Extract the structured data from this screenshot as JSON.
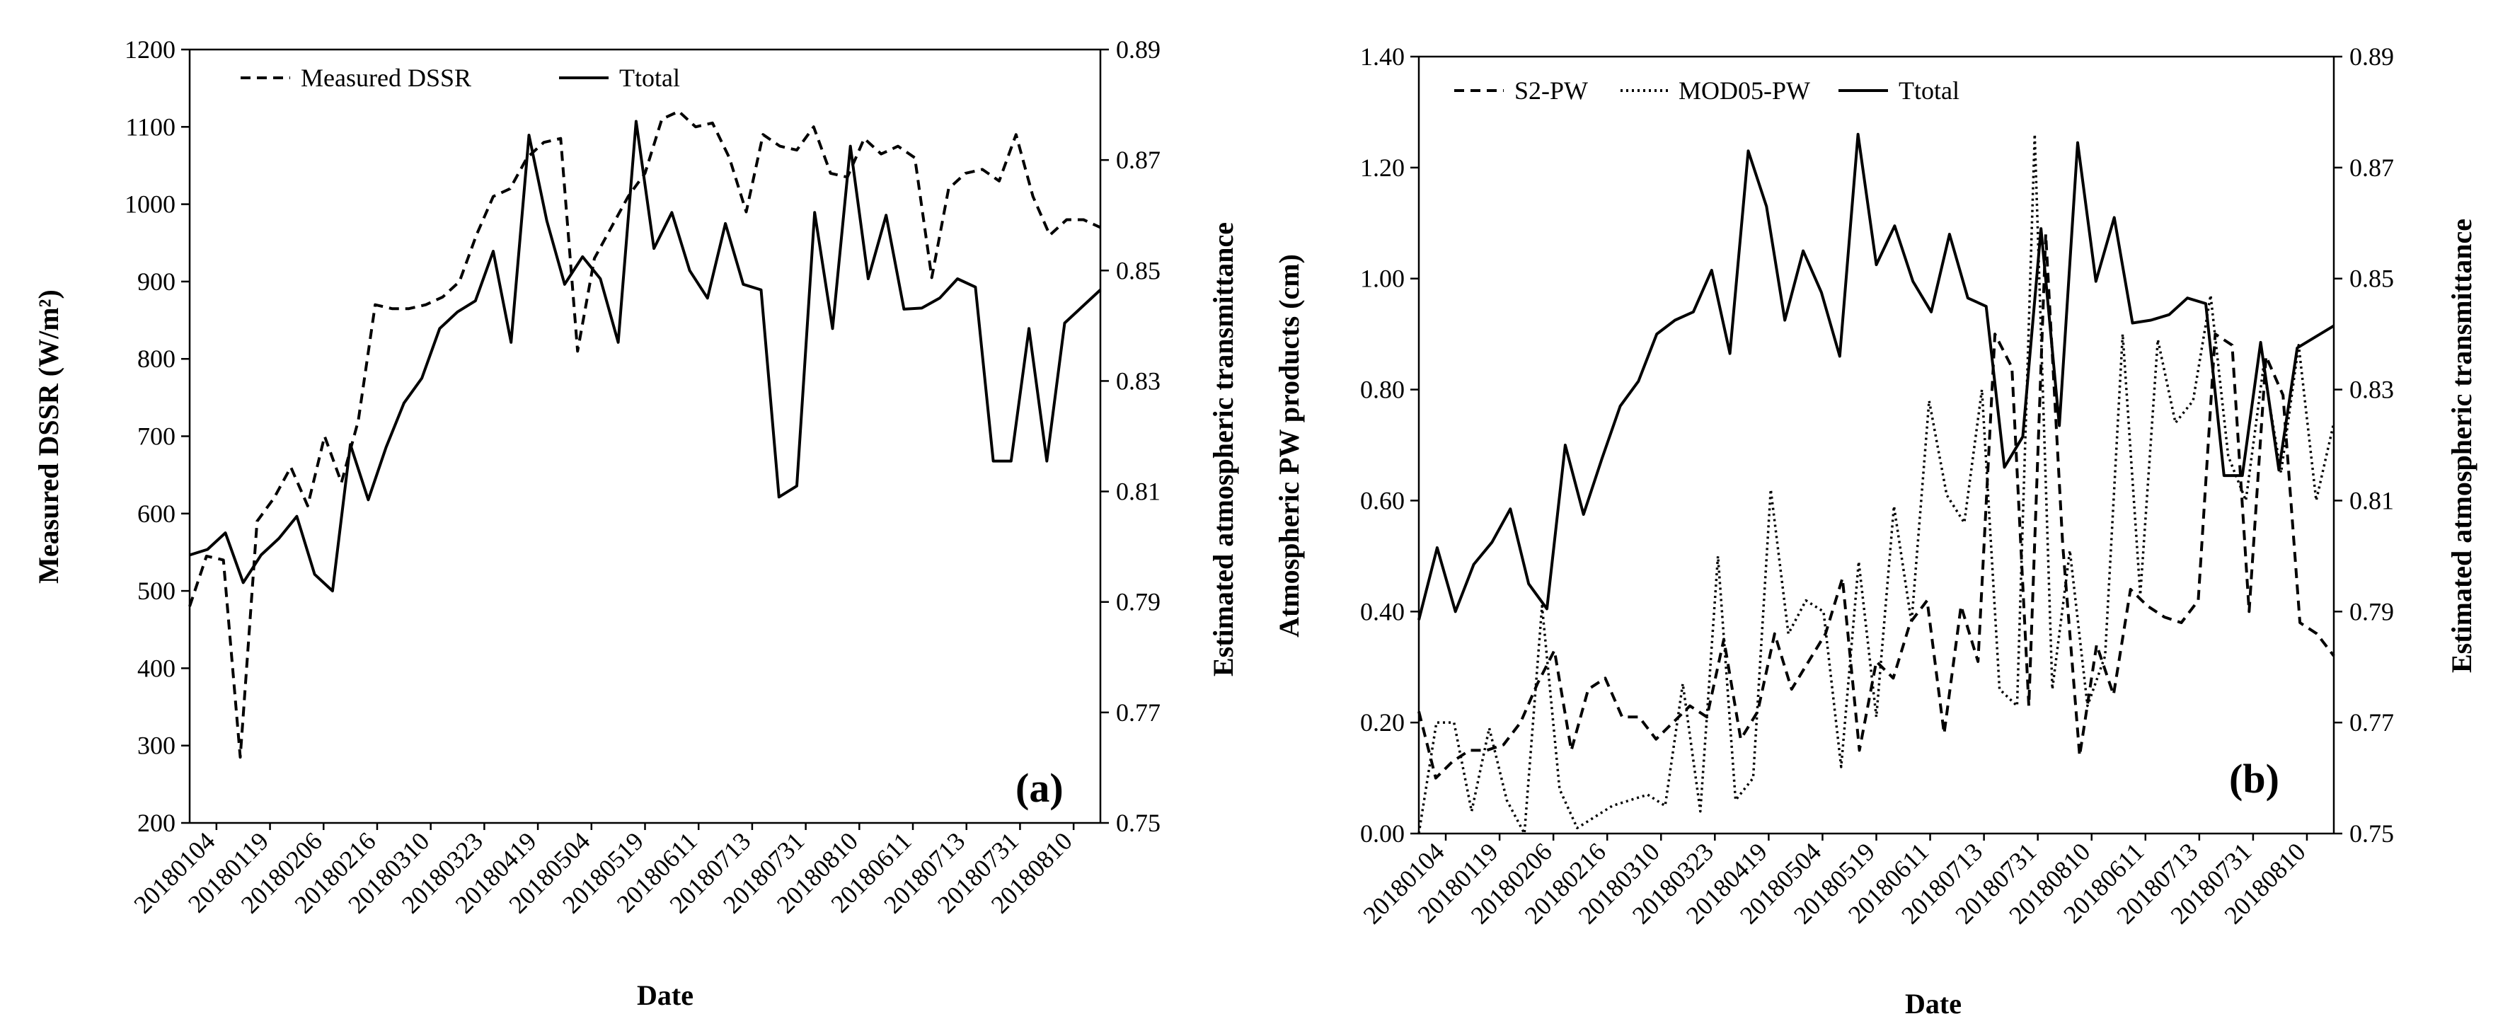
{
  "chart_data": [
    {
      "type": "line",
      "panel_label": "(a)",
      "xlabel": "Date",
      "ylabel": "Measured DSSR (W/m²)",
      "y2label": "Estimated atmospheric transmittance",
      "ylim": [
        200,
        1200
      ],
      "y_ticks": [
        "200",
        "300",
        "400",
        "500",
        "600",
        "700",
        "800",
        "900",
        "1000",
        "1100",
        "1200"
      ],
      "y2lim": [
        0.75,
        0.89
      ],
      "y2_ticks": [
        "0.75",
        "0.77",
        "0.79",
        "0.81",
        "0.83",
        "0.85",
        "0.87",
        "0.89"
      ],
      "x_tick_labels": [
        "20180104",
        "20180119",
        "20180206",
        "20180216",
        "20180310",
        "20180323",
        "20180419",
        "20180504",
        "20180519",
        "20180611",
        "20180713",
        "20180731",
        "20180810",
        "20180611",
        "20180713",
        "20180731",
        "20180810"
      ],
      "legend": [
        "Measured DSSR",
        "Ttotal"
      ],
      "series": [
        {
          "name": "Measured DSSR",
          "axis": "left",
          "style": "dashed",
          "values": [
            480,
            545,
            540,
            285,
            590,
            620,
            660,
            610,
            700,
            640,
            720,
            870,
            865,
            865,
            870,
            880,
            900,
            960,
            1010,
            1020,
            1060,
            1080,
            1085,
            810,
            930,
            970,
            1010,
            1040,
            1110,
            1120,
            1100,
            1105,
            1060,
            990,
            1090,
            1075,
            1070,
            1100,
            1040,
            1035,
            1085,
            1065,
            1075,
            1060,
            905,
            1020,
            1040,
            1045,
            1030,
            1090,
            1010,
            960,
            980,
            980,
            970
          ]
        },
        {
          "name": "Ttotal",
          "axis": "right",
          "style": "solid",
          "values": [
            0.7985,
            0.7995,
            0.8025,
            0.7935,
            0.7985,
            0.8015,
            0.8055,
            0.795,
            0.792,
            0.8185,
            0.8085,
            0.818,
            0.826,
            0.8305,
            0.8395,
            0.8425,
            0.8445,
            0.8535,
            0.837,
            0.8745,
            0.859,
            0.8475,
            0.8525,
            0.8485,
            0.837,
            0.877,
            0.854,
            0.8605,
            0.85,
            0.845,
            0.8585,
            0.8475,
            0.8465,
            0.809,
            0.811,
            0.8605,
            0.8395,
            0.8725,
            0.8485,
            0.86,
            0.843,
            0.8432,
            0.845,
            0.8485,
            0.847,
            0.8155,
            0.8155,
            0.8395,
            0.8155,
            0.8405,
            0.8435,
            0.8465
          ]
        }
      ]
    },
    {
      "type": "line",
      "panel_label": "(b)",
      "xlabel": "Date",
      "ylabel": "Atmospheric  PW products (cm)",
      "y2label": "Estimated atmospheric transmittance",
      "ylim": [
        0,
        1.4
      ],
      "y_ticks": [
        "0.00",
        "0.20",
        "0.40",
        "0.60",
        "0.80",
        "1.00",
        "1.20",
        "1.40"
      ],
      "y2lim": [
        0.75,
        0.89
      ],
      "y2_ticks": [
        "0.75",
        "0.77",
        "0.79",
        "0.81",
        "0.83",
        "0.85",
        "0.87",
        "0.89"
      ],
      "x_tick_labels": [
        "20180104",
        "20180119",
        "20180206",
        "20180216",
        "20180310",
        "20180323",
        "20180419",
        "20180504",
        "20180519",
        "20180611",
        "20180713",
        "20180731",
        "20180810",
        "20180611",
        "20180713",
        "20180731",
        "20180810"
      ],
      "legend": [
        "S2-PW",
        "MOD05-PW",
        "Ttotal"
      ],
      "series": [
        {
          "name": "S2-PW",
          "axis": "left",
          "style": "dashed",
          "values": [
            0.22,
            0.1,
            0.13,
            0.15,
            0.15,
            0.16,
            0.2,
            0.27,
            0.33,
            0.15,
            0.26,
            0.28,
            0.21,
            0.21,
            0.17,
            0.2,
            0.23,
            0.21,
            0.35,
            0.17,
            0.22,
            0.36,
            0.26,
            0.31,
            0.36,
            0.46,
            0.15,
            0.31,
            0.28,
            0.38,
            0.42,
            0.18,
            0.41,
            0.31,
            0.9,
            0.84,
            0.23,
            1.08,
            0.52,
            0.14,
            0.34,
            0.25,
            0.44,
            0.41,
            0.39,
            0.38,
            0.42,
            0.9,
            0.88,
            0.4,
            0.86,
            0.79,
            0.38,
            0.36,
            0.32
          ]
        },
        {
          "name": "MOD05-PW",
          "axis": "left",
          "style": "dotted",
          "values": [
            0.0,
            0.2,
            0.2,
            0.04,
            0.19,
            0.06,
            0.0,
            0.41,
            0.08,
            0.01,
            0.03,
            0.05,
            0.06,
            0.07,
            0.05,
            0.27,
            0.04,
            0.5,
            0.06,
            0.1,
            0.62,
            0.36,
            0.42,
            0.4,
            0.12,
            0.49,
            0.21,
            0.59,
            0.38,
            0.78,
            0.61,
            0.56,
            0.8,
            0.26,
            0.23,
            1.26,
            0.26,
            0.51,
            0.23,
            0.32,
            0.9,
            0.43,
            0.89,
            0.74,
            0.78,
            0.97,
            0.68,
            0.6,
            0.84,
            0.65,
            0.88,
            0.6,
            0.74
          ]
        },
        {
          "name": "Ttotal",
          "axis": "right",
          "style": "solid",
          "values": [
            0.7885,
            0.8015,
            0.79,
            0.7985,
            0.8025,
            0.8085,
            0.795,
            0.7905,
            0.82,
            0.8075,
            0.8175,
            0.827,
            0.8315,
            0.84,
            0.8425,
            0.844,
            0.8515,
            0.8365,
            0.873,
            0.863,
            0.8425,
            0.855,
            0.8475,
            0.836,
            0.876,
            0.8525,
            0.8595,
            0.8495,
            0.844,
            0.858,
            0.8465,
            0.845,
            0.816,
            0.8215,
            0.859,
            0.8235,
            0.8745,
            0.8495,
            0.861,
            0.842,
            0.8425,
            0.8435,
            0.8465,
            0.8455,
            0.8145,
            0.8145,
            0.8385,
            0.8155,
            0.8375,
            0.8395,
            0.8415
          ]
        }
      ]
    }
  ]
}
